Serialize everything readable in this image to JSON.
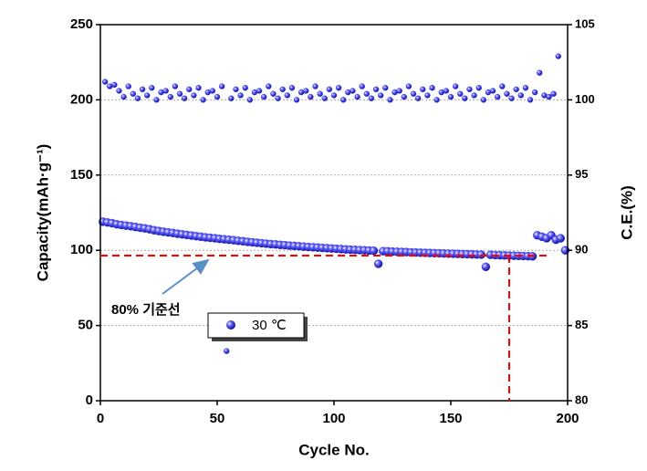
{
  "chart_data": {
    "type": "scatter",
    "xlabel": "Cycle No.",
    "ylabel": "Capacity(mAh·g⁻¹)",
    "y2label": "C.E.(%)",
    "xlim": [
      0,
      200
    ],
    "xticks": [
      0,
      50,
      100,
      150,
      200
    ],
    "ylim": [
      0,
      250
    ],
    "yticks": [
      0,
      50,
      100,
      150,
      200,
      250
    ],
    "y2lim": [
      80,
      105
    ],
    "y2ticks": [
      80,
      85,
      90,
      95,
      100,
      105
    ],
    "grid": true,
    "annotation": "80% 기준선",
    "reference_hline": {
      "y": 96.5,
      "x_range": [
        0,
        192
      ],
      "color": "#ff0000"
    },
    "reference_vline": {
      "x": 175,
      "color": "#ff0000"
    },
    "series": [
      {
        "name": "30 ℃",
        "color": "#2f2fe0",
        "x": [
          1,
          3,
          5,
          7,
          9,
          11,
          13,
          15,
          17,
          19,
          21,
          23,
          25,
          27,
          29,
          31,
          33,
          35,
          37,
          39,
          41,
          43,
          45,
          47,
          49,
          51,
          53,
          55,
          57,
          59,
          61,
          63,
          65,
          67,
          69,
          71,
          73,
          75,
          77,
          79,
          81,
          83,
          85,
          87,
          89,
          91,
          93,
          95,
          97,
          99,
          101,
          103,
          105,
          107,
          109,
          111,
          113,
          115,
          117,
          119,
          121,
          123,
          125,
          127,
          129,
          131,
          133,
          135,
          137,
          139,
          141,
          143,
          145,
          147,
          149,
          151,
          153,
          155,
          157,
          159,
          161,
          163,
          165,
          167,
          169,
          171,
          173,
          175,
          177,
          179,
          181,
          183,
          185,
          187,
          189,
          191,
          193,
          195,
          197,
          199
        ],
        "values": [
          119,
          118.5,
          118,
          117.3,
          116.8,
          116.4,
          116,
          115.5,
          115,
          114.6,
          114,
          113.3,
          112.8,
          112.3,
          111.9,
          111.5,
          111,
          110.6,
          110.2,
          109.8,
          109.4,
          109,
          108.6,
          108.3,
          108,
          107.6,
          107.3,
          107,
          106.7,
          106.3,
          106,
          105.6,
          105.3,
          105,
          104.7,
          104.4,
          104.1,
          103.9,
          103.6,
          103.4,
          103.1,
          102.9,
          102.7,
          102.4,
          102.2,
          102,
          101.8,
          101.6,
          101.4,
          101.2,
          101,
          100.8,
          100.6,
          100.4,
          100.3,
          100.1,
          100,
          99.8,
          99.7,
          91,
          99.4,
          99.3,
          99.1,
          99,
          98.9,
          98.8,
          98.6,
          98.5,
          98.4,
          98.3,
          98.2,
          98.1,
          98,
          97.9,
          97.8,
          97.7,
          97.6,
          97.5,
          97.4,
          97.3,
          97.2,
          97.1,
          89,
          97,
          96.8,
          96.7,
          96.6,
          96.5,
          96.4,
          96.3,
          96.2,
          96.1,
          96,
          110,
          109,
          108,
          110,
          107,
          108,
          100
        ]
      },
      {
        "axis": "y2",
        "color": "#2f2fe0",
        "x": [
          2,
          4,
          6,
          8,
          10,
          12,
          14,
          16,
          18,
          20,
          22,
          24,
          26,
          28,
          30,
          32,
          34,
          36,
          38,
          40,
          42,
          44,
          46,
          48,
          50,
          52,
          54,
          56,
          58,
          60,
          62,
          64,
          66,
          68,
          70,
          72,
          74,
          76,
          78,
          80,
          82,
          84,
          86,
          88,
          90,
          92,
          94,
          96,
          98,
          100,
          102,
          104,
          106,
          108,
          110,
          112,
          114,
          116,
          118,
          120,
          122,
          124,
          126,
          128,
          130,
          132,
          134,
          136,
          138,
          140,
          142,
          144,
          146,
          148,
          150,
          152,
          154,
          156,
          158,
          160,
          162,
          164,
          166,
          168,
          170,
          172,
          174,
          176,
          178,
          180,
          182,
          184,
          186,
          188,
          190,
          192,
          194,
          196
        ],
        "values": [
          101.2,
          100.9,
          101.0,
          100.6,
          100.2,
          100.9,
          100.4,
          100.1,
          100.7,
          100.3,
          100.8,
          100.0,
          100.5,
          100.6,
          100.2,
          100.9,
          100.4,
          100.1,
          100.7,
          100.3,
          100.8,
          100.0,
          100.5,
          100.6,
          100.2,
          100.9,
          83.3,
          100.1,
          100.7,
          100.3,
          100.8,
          100.0,
          100.5,
          100.6,
          100.2,
          100.9,
          100.4,
          100.1,
          100.7,
          100.3,
          100.8,
          100.0,
          100.5,
          100.6,
          100.2,
          100.9,
          100.4,
          100.1,
          100.7,
          100.3,
          100.8,
          100.0,
          100.5,
          100.6,
          100.2,
          100.9,
          100.4,
          100.1,
          100.7,
          100.3,
          100.8,
          100.0,
          100.5,
          100.6,
          100.2,
          100.9,
          100.4,
          100.1,
          100.7,
          100.3,
          100.8,
          100.0,
          100.5,
          100.6,
          100.2,
          100.9,
          100.4,
          100.1,
          100.7,
          100.3,
          100.8,
          100.0,
          100.5,
          100.6,
          100.2,
          100.9,
          100.4,
          100.1,
          100.7,
          100.3,
          100.8,
          100.0,
          100.5,
          101.8,
          100.3,
          100.2,
          100.4,
          102.9
        ]
      }
    ]
  }
}
